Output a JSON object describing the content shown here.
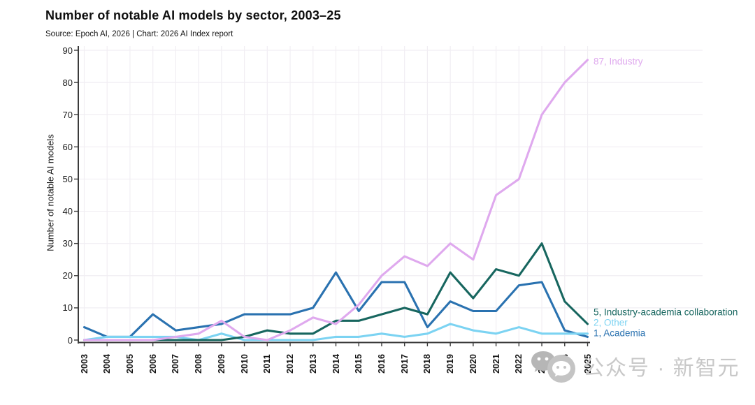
{
  "header": {
    "title": "Number of notable AI models by sector, 2003–25",
    "subtitle": "Source: Epoch AI, 2026 | Chart: 2026 AI Index report"
  },
  "watermark": {
    "icon": "wechat-icon",
    "text": "公众号 · 新智元"
  },
  "colors": {
    "industry": "#dfa9ee",
    "collaboration": "#17665f",
    "other": "#7cd3f2",
    "academia": "#2a72b0",
    "grid": "#f1eef3",
    "axis": "#3b3b3b",
    "watermark": "#c8c8c8"
  },
  "chart_data": {
    "type": "line",
    "title": "Number of notable AI models by sector, 2003–25",
    "xlabel": "",
    "ylabel": "Number of notable AI models",
    "ylim": [
      0,
      90
    ],
    "yticks": [
      0,
      10,
      20,
      30,
      40,
      50,
      60,
      70,
      80,
      90
    ],
    "grid": true,
    "legend_position": "line-end-labels",
    "x": [
      "2003",
      "2004",
      "2005",
      "2006",
      "2007",
      "2008",
      "2009",
      "2010",
      "2011",
      "2012",
      "2013",
      "2014",
      "2015",
      "2016",
      "2017",
      "2018",
      "2019",
      "2020",
      "2021",
      "2022",
      "2023",
      "2024",
      "2025"
    ],
    "series": [
      {
        "name": "Academia",
        "color": "#2a72b0",
        "end_label": "1, Academia",
        "end_value": 1,
        "values": [
          4,
          1,
          1,
          8,
          3,
          4,
          5,
          8,
          8,
          8,
          10,
          21,
          9,
          18,
          18,
          4,
          12,
          9,
          9,
          17,
          18,
          3,
          1
        ]
      },
      {
        "name": "Other",
        "color": "#7cd3f2",
        "end_label": "2, Other",
        "end_value": 2,
        "values": [
          0,
          1,
          1,
          1,
          1,
          0,
          2,
          0,
          0,
          0,
          0,
          1,
          1,
          2,
          1,
          2,
          5,
          3,
          2,
          4,
          2,
          2,
          2
        ]
      },
      {
        "name": "Industry-academia collaboration",
        "color": "#17665f",
        "end_label": "5, Industry-academia collaboration",
        "end_value": 5,
        "values": [
          0,
          0,
          0,
          0,
          0,
          0,
          0,
          1,
          3,
          2,
          2,
          6,
          6,
          8,
          10,
          8,
          21,
          13,
          22,
          20,
          30,
          12,
          5
        ]
      },
      {
        "name": "Industry",
        "color": "#dfa9ee",
        "end_label": "87, Industry",
        "end_value": 87,
        "values": [
          0,
          0,
          0,
          0,
          1,
          2,
          6,
          1,
          0,
          3,
          7,
          5,
          11,
          20,
          26,
          23,
          30,
          25,
          45,
          50,
          70,
          80,
          87
        ]
      }
    ]
  }
}
